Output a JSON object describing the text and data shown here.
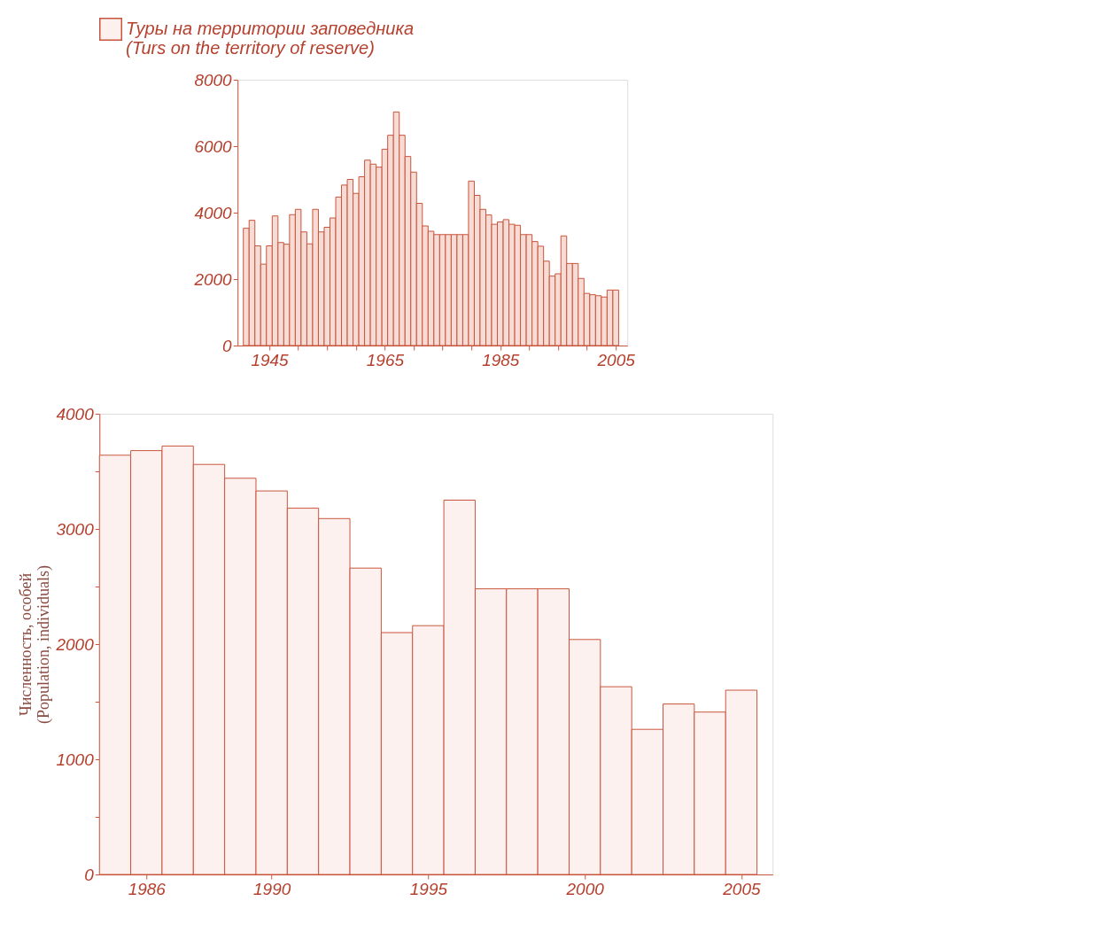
{
  "chart_data": [
    {
      "type": "bar",
      "x": [
        1985,
        1986,
        1987,
        1988,
        1989,
        1990,
        1991,
        1992,
        1993,
        1994,
        1995,
        1996,
        1997,
        1998,
        1999,
        2000,
        2001,
        2002,
        2003,
        2004,
        2005
      ],
      "series": [
        {
          "name": "Туры на территории заповедника\n(Turs on the territory of reserve)",
          "color": "#fdf1ef",
          "values": [
            3640,
            3680,
            3720,
            3560,
            3440,
            3330,
            3180,
            3090,
            2660,
            2100,
            2160,
            3250,
            2480,
            2480,
            2480,
            2040,
            1630,
            1260,
            1480,
            1410,
            1600
          ]
        }
      ],
      "ylabel": "Численность, особей\n(Population, individuals)",
      "xlim": [
        1984.5,
        2006
      ],
      "xticks": [
        1986,
        1990,
        1995,
        2000,
        2005
      ],
      "ylim": [
        0,
        4000
      ],
      "yticks": [
        0,
        {
          "value": 500,
          "label": null
        },
        1000,
        {
          "value": 1500,
          "label": null
        },
        2000,
        {
          "value": 2500,
          "label": null
        },
        3000,
        {
          "value": 3500,
          "label": null
        },
        4000
      ],
      "grid": false,
      "legend": "top left"
    },
    {
      "type": "bar",
      "x": [
        1941,
        1942,
        1943,
        1944,
        1945,
        1946,
        1947,
        1948,
        1949,
        1950,
        1951,
        1952,
        1953,
        1954,
        1955,
        1956,
        1957,
        1958,
        1959,
        1960,
        1961,
        1962,
        1963,
        1964,
        1965,
        1966,
        1967,
        1968,
        1969,
        1970,
        1971,
        1972,
        1973,
        1974,
        1975,
        1976,
        1977,
        1978,
        1979,
        1980,
        1981,
        1982,
        1983,
        1984,
        1985,
        1986,
        1987,
        1988,
        1989,
        1990,
        1991,
        1992,
        1993,
        1994,
        1995,
        1996,
        1997,
        1998,
        1999,
        2000,
        2001,
        2002,
        2003,
        2004,
        2005
      ],
      "series": [
        {
          "color": "#f6dcd4",
          "values": [
            3530,
            3770,
            3000,
            2450,
            3000,
            3900,
            3100,
            3050,
            3940,
            4100,
            3420,
            3060,
            4100,
            3420,
            3560,
            3840,
            4470,
            4830,
            5000,
            4580,
            5080,
            5580,
            5460,
            5370,
            5910,
            6330,
            7030,
            6330,
            5690,
            5220,
            4280,
            3600,
            3440,
            3340,
            3340,
            3340,
            3340,
            3340,
            3340,
            4950,
            4520,
            4100,
            3930,
            3650,
            3720,
            3790,
            3650,
            3620,
            3340,
            3340,
            3130,
            2990,
            2540,
            2090,
            2160,
            3300,
            2470,
            2470,
            2020,
            1570,
            1530,
            1500,
            1460,
            1670,
            1670
          ]
        }
      ],
      "xlim": [
        1939.5,
        2007
      ],
      "xticks": [
        1945,
        {
          "value": 1950,
          "label": null
        },
        {
          "value": 1955,
          "label": null
        },
        {
          "value": 1960,
          "label": null
        },
        1965,
        {
          "value": 1970,
          "label": null
        },
        {
          "value": 1975,
          "label": null
        },
        {
          "value": 1980,
          "label": null
        },
        1985,
        {
          "value": 1990,
          "label": null
        },
        {
          "value": 1995,
          "label": null
        },
        {
          "value": 2000,
          "label": null
        },
        2005
      ],
      "ylim": [
        0,
        8000
      ],
      "yticks": [
        0,
        2000,
        4000,
        6000,
        8000
      ],
      "grid": false
    }
  ]
}
